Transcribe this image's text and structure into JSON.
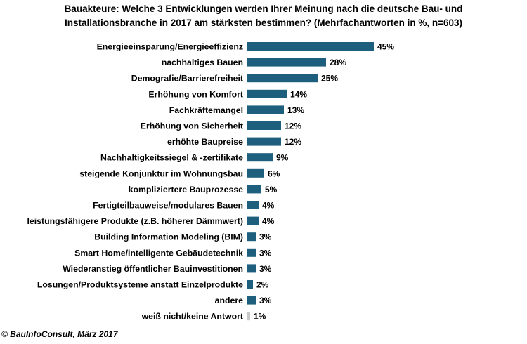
{
  "header": {
    "title_line1": "Bauakteure: Welche 3 Entwicklungen werden Ihrer Meinung nach die deutsche Bau- und",
    "title_line2": "Installationsbranche in 2017 am stärksten bestimmen? (Mehrfachantworten in %, n=603)"
  },
  "footer": {
    "copyright": "© BauInfoConsult, März 2017"
  },
  "chart_data": {
    "type": "bar",
    "orientation": "horizontal",
    "categories": [
      "Energieeinsparung/Energieeffizienz",
      "nachhaltiges Bauen",
      "Demografie/Barrierefreiheit",
      "Erhöhung von Komfort",
      "Fachkräftemangel",
      "Erhöhung von Sicherheit",
      "erhöhte Baupreise",
      "Nachhaltigkeitssiegel & -zertifikate",
      "steigende Konjunktur im Wohnungsbau",
      "kompliziertere Bauprozesse",
      "Fertigteilbauweise/modulares Bauen",
      "leistungsfähigere Produkte (z.B. höherer Dämmwert)",
      "Building Information Modeling (BIM)",
      "Smart Home/intelligente Gebäudetechnik",
      "Wiederanstieg öffentlicher Bauinvestitionen",
      "Lösungen/Produktsysteme anstatt Einzelprodukte",
      "andere",
      "weiß nicht/keine Antwort"
    ],
    "values": [
      45,
      28,
      25,
      14,
      13,
      12,
      12,
      9,
      6,
      5,
      4,
      4,
      3,
      3,
      3,
      2,
      3,
      1
    ],
    "data_labels": [
      "45%",
      "28%",
      "25%",
      "14%",
      "13%",
      "12%",
      "12%",
      "9%",
      "6%",
      "5%",
      "4%",
      "4%",
      "3%",
      "3%",
      "3%",
      "2%",
      "3%",
      "1%"
    ],
    "colors": {
      "bar": "#1e5f7e",
      "bar_last": "#c8c8c8"
    },
    "xlim": [
      0,
      50
    ],
    "grid": false,
    "legend": "none"
  }
}
